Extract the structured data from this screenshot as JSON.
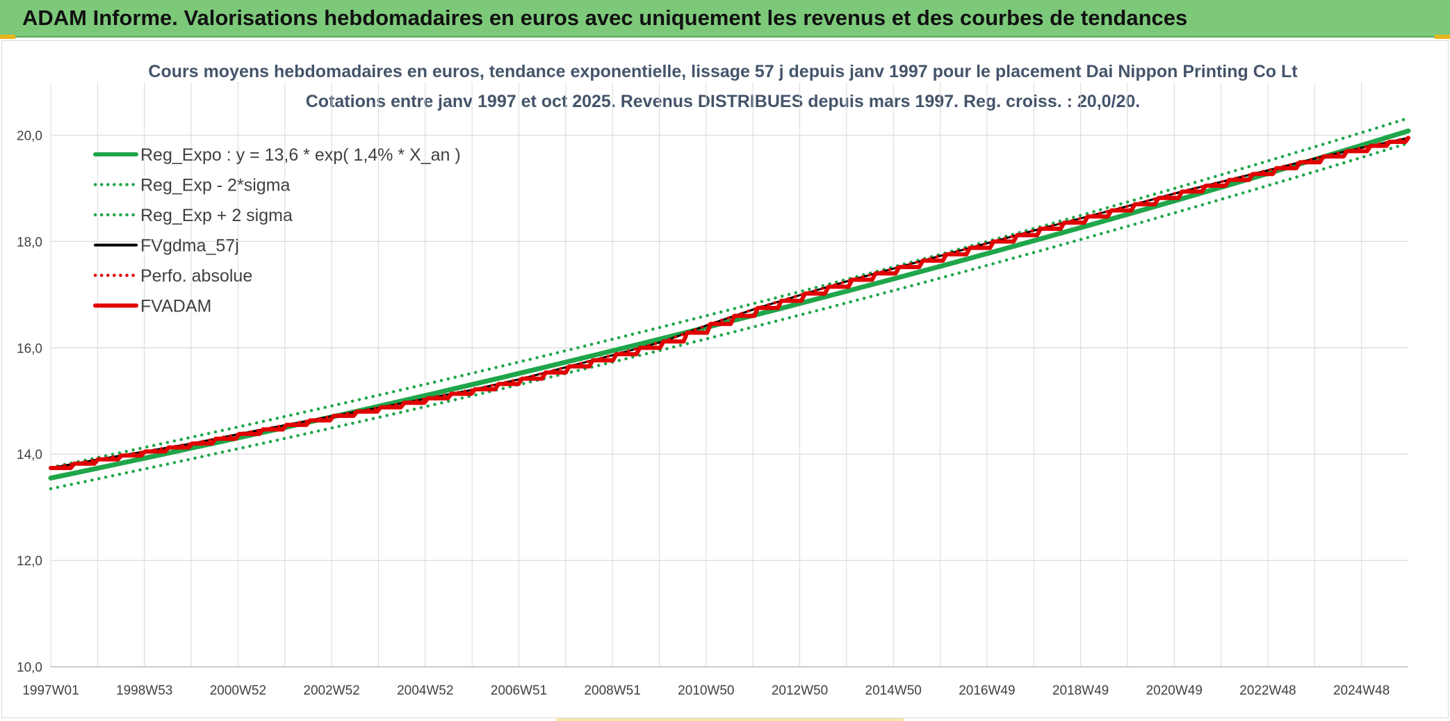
{
  "banner": {
    "title": "ADAM Informe. Valorisations hebdomadaires en euros avec uniquement les revenus et des courbes de tendances"
  },
  "colors": {
    "banner": "#7dc97a",
    "reg_expo": "#1fa64a",
    "reg_sigma": "#1fa64a",
    "fvgdma": "#000000",
    "perfo": "#e00000",
    "fvadam": "#e00000",
    "grid": "#d9d9d9"
  },
  "chart_data": {
    "type": "line",
    "title": [
      "Cours moyens hebdomadaires en euros, tendance exponentielle, lissage 57 j depuis janv 1997 pour le placement Dai Nippon Printing Co Lt",
      "Cotations entre janv 1997 et oct 2025. Revenus DISTRIBUES depuis mars 1997. Reg. croiss. : 20,0/20."
    ],
    "xlabel": "",
    "ylabel": "",
    "x_tick_labels": [
      "1997W01",
      "1998W53",
      "2000W52",
      "2002W52",
      "2004W52",
      "2006W51",
      "2008W51",
      "2010W50",
      "2012W50",
      "2014W50",
      "2016W49",
      "2018W49",
      "2020W49",
      "2022W48",
      "2024W48"
    ],
    "y_ticks": [
      10,
      12,
      14,
      16,
      18,
      20
    ],
    "y_tick_labels": [
      "10,0",
      "12,0",
      "14,0",
      "16,0",
      "18,0",
      "20,0"
    ],
    "ylim": [
      10,
      21
    ],
    "xlim_years": [
      1997.0,
      2025.8
    ],
    "grid": true,
    "legend_position": "top-left",
    "series": [
      {
        "name": "Reg_Expo : y = 13,6 * exp( 1,4% *  X_an )",
        "style": "solid-thick",
        "color": "#1fa64a",
        "x_years": [
          1997.0,
          2025.8
        ],
        "y_start": 13.55,
        "y_end": 20.08,
        "model": "exponential"
      },
      {
        "name": "Reg_Exp - 2*sigma",
        "style": "dotted",
        "color": "#1fa64a",
        "x_years": [
          1997.0,
          2025.8
        ],
        "y_start": 13.35,
        "y_end": 19.85,
        "model": "exponential"
      },
      {
        "name": "Reg_Exp + 2 sigma",
        "style": "dotted",
        "color": "#1fa64a",
        "x_years": [
          1997.0,
          2025.8
        ],
        "y_start": 13.75,
        "y_end": 20.32,
        "model": "exponential"
      },
      {
        "name": "FVgdma_57j",
        "style": "solid",
        "color": "#000000",
        "x_years": [
          1997.0,
          1998.0,
          1999.0,
          2000.0,
          2001.0,
          2002.0,
          2003.0,
          2004.0,
          2005.0,
          2006.0,
          2007.0,
          2008.0,
          2009.0,
          2010.0,
          2011.0,
          2012.0,
          2013.0,
          2014.0,
          2015.0,
          2016.0,
          2017.0,
          2018.0,
          2019.0,
          2020.0,
          2021.0,
          2022.0,
          2023.0,
          2024.0,
          2025.0,
          2025.8
        ],
        "y": [
          13.74,
          13.9,
          14.05,
          14.2,
          14.38,
          14.55,
          14.72,
          14.88,
          15.05,
          15.22,
          15.42,
          15.65,
          15.88,
          16.12,
          16.45,
          16.75,
          17.02,
          17.28,
          17.52,
          17.76,
          18.0,
          18.24,
          18.47,
          18.7,
          18.94,
          19.16,
          19.38,
          19.6,
          19.8,
          19.95
        ]
      },
      {
        "name": "Perfo. absolue",
        "style": "dotted",
        "color": "#e00000",
        "x_years": [
          1997.0,
          1998.0,
          1999.0,
          2000.0,
          2001.0,
          2002.0,
          2003.0,
          2004.0,
          2005.0,
          2006.0,
          2007.0,
          2008.0,
          2009.0,
          2010.0,
          2011.0,
          2012.0,
          2013.0,
          2014.0,
          2015.0,
          2016.0,
          2017.0,
          2018.0,
          2019.0,
          2020.0,
          2021.0,
          2022.0,
          2023.0,
          2024.0,
          2025.0,
          2025.8
        ],
        "y": [
          13.74,
          13.9,
          14.05,
          14.2,
          14.38,
          14.55,
          14.72,
          14.88,
          15.05,
          15.22,
          15.42,
          15.65,
          15.88,
          16.12,
          16.45,
          16.75,
          17.02,
          17.28,
          17.52,
          17.76,
          18.0,
          18.24,
          18.47,
          18.7,
          18.94,
          19.16,
          19.38,
          19.6,
          19.8,
          19.95
        ]
      },
      {
        "name": "FVADAM",
        "style": "solid-thick",
        "color": "#e00000",
        "x_years": [
          1997.0,
          1998.0,
          1999.0,
          2000.0,
          2001.0,
          2002.0,
          2003.0,
          2004.0,
          2005.0,
          2006.0,
          2007.0,
          2008.0,
          2009.0,
          2010.0,
          2011.0,
          2012.0,
          2013.0,
          2014.0,
          2015.0,
          2016.0,
          2017.0,
          2018.0,
          2019.0,
          2020.0,
          2021.0,
          2022.0,
          2023.0,
          2024.0,
          2025.0,
          2025.8
        ],
        "y": [
          13.74,
          13.9,
          14.05,
          14.2,
          14.38,
          14.55,
          14.72,
          14.88,
          15.05,
          15.22,
          15.42,
          15.65,
          15.88,
          16.12,
          16.45,
          16.75,
          17.02,
          17.28,
          17.52,
          17.76,
          18.0,
          18.24,
          18.47,
          18.7,
          18.94,
          19.16,
          19.38,
          19.6,
          19.8,
          19.95
        ],
        "shape": "step"
      }
    ]
  }
}
